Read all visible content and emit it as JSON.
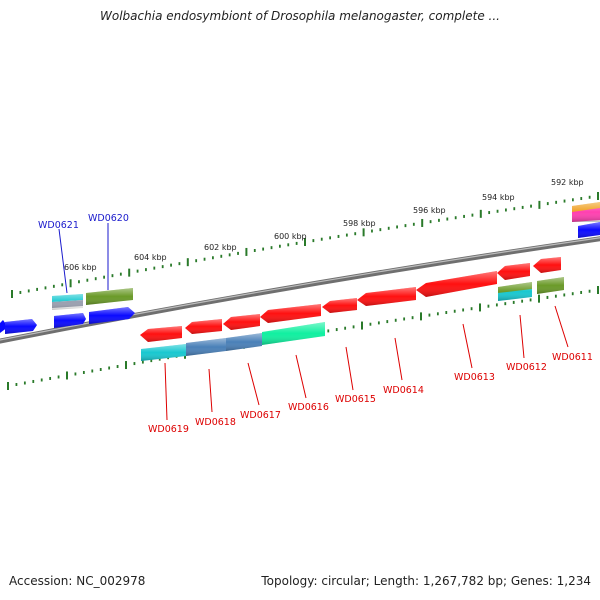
{
  "title": "Wolbachia endosymbiont of Drosophila melanogaster, complete ...",
  "footer": {
    "accession": "Accession: NC_002978",
    "summary": "Topology: circular; Length: 1,267,782 bp; Genes: 1,234"
  },
  "scale_labels": [
    "606 kbp",
    "604 kbp",
    "602 kbp",
    "600 kbp",
    "598 kbp",
    "596 kbp",
    "594 kbp",
    "592 kbp"
  ],
  "genes_forward": [
    "WD0621",
    "WD0620"
  ],
  "genes_reverse": [
    "WD0619",
    "WD0618",
    "WD0617",
    "WD0616",
    "WD0615",
    "WD0614",
    "WD0613",
    "WD0612",
    "WD0611"
  ],
  "colors": {
    "forward_label": "#1a1acc",
    "reverse_label": "#dd0000",
    "tick": "#2a7a2a",
    "backbone": "#888888",
    "gene_blue": "#0a0aff",
    "gene_red": "#ff1010",
    "gene_cyan": "#18c8d0",
    "gene_steel": "#4a80b8",
    "gene_spring": "#10f0a0",
    "gene_olive": "#6a9a28",
    "gene_orange": "#f0a020",
    "gene_pink": "#ff40b0"
  }
}
